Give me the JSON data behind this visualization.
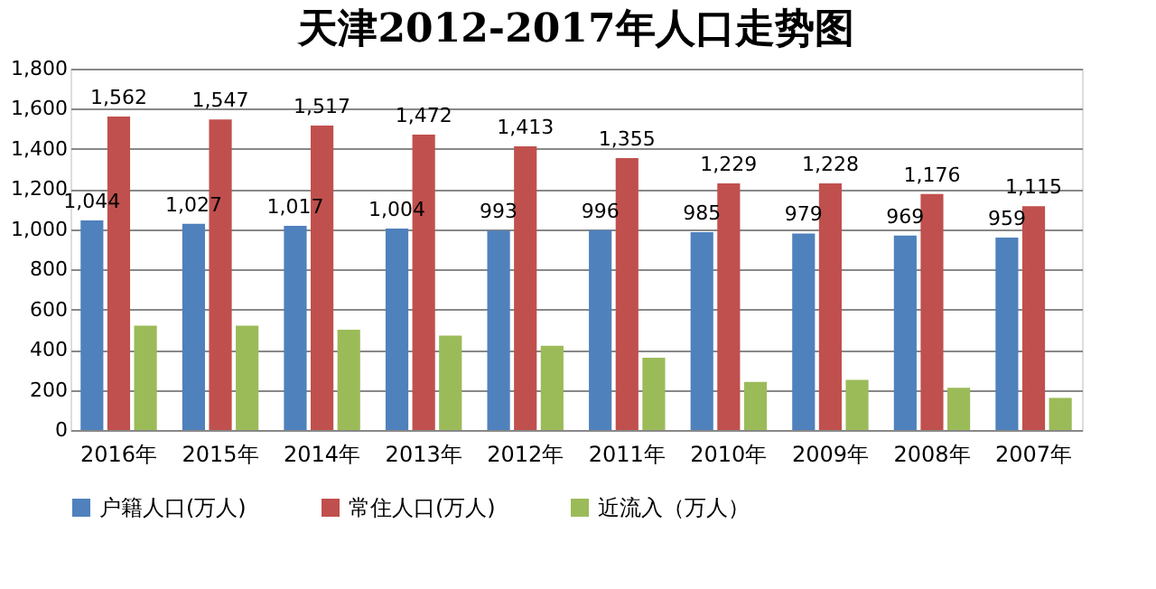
{
  "chart_data": {
    "type": "bar",
    "title": "天津2012-2017年人口走势图",
    "categories": [
      "2016年",
      "2015年",
      "2014年",
      "2013年",
      "2012年",
      "2011年",
      "2010年",
      "2009年",
      "2008年",
      "2007年"
    ],
    "series": [
      {
        "name": "户籍人口(万人)",
        "color": "#4f81bd",
        "values": [
          1044,
          1027,
          1017,
          1004,
          993,
          996,
          985,
          979,
          969,
          959
        ],
        "value_labels": [
          "1,044",
          "1,027",
          "1,017",
          "1,004",
          "993",
          "996",
          "985",
          "979",
          "969",
          "959"
        ]
      },
      {
        "name": "常住人口(万人)",
        "color": "#c0504d",
        "values": [
          1562,
          1547,
          1517,
          1472,
          1413,
          1355,
          1229,
          1228,
          1176,
          1115
        ],
        "value_labels": [
          "1,562",
          "1,547",
          "1,517",
          "1,472",
          "1,413",
          "1,355",
          "1,229",
          "1,228",
          "1,176",
          "1,115"
        ]
      },
      {
        "name": "近流入（万人）",
        "color": "#9bbb59",
        "values": [
          520,
          520,
          500,
          470,
          420,
          360,
          240,
          250,
          210,
          160
        ]
      }
    ],
    "ylim": [
      0,
      1800
    ],
    "yticks": [
      {
        "value": 0,
        "label": "0"
      },
      {
        "value": 200,
        "label": "200"
      },
      {
        "value": 400,
        "label": "400"
      },
      {
        "value": 600,
        "label": "600"
      },
      {
        "value": 800,
        "label": "800"
      },
      {
        "value": 1000,
        "label": "1,000"
      },
      {
        "value": 1200,
        "label": "1,200"
      },
      {
        "value": 1400,
        "label": "1,400"
      },
      {
        "value": 1600,
        "label": "1,600"
      },
      {
        "value": 1800,
        "label": "1,800"
      }
    ],
    "grid": "y",
    "legend": "bottom"
  }
}
